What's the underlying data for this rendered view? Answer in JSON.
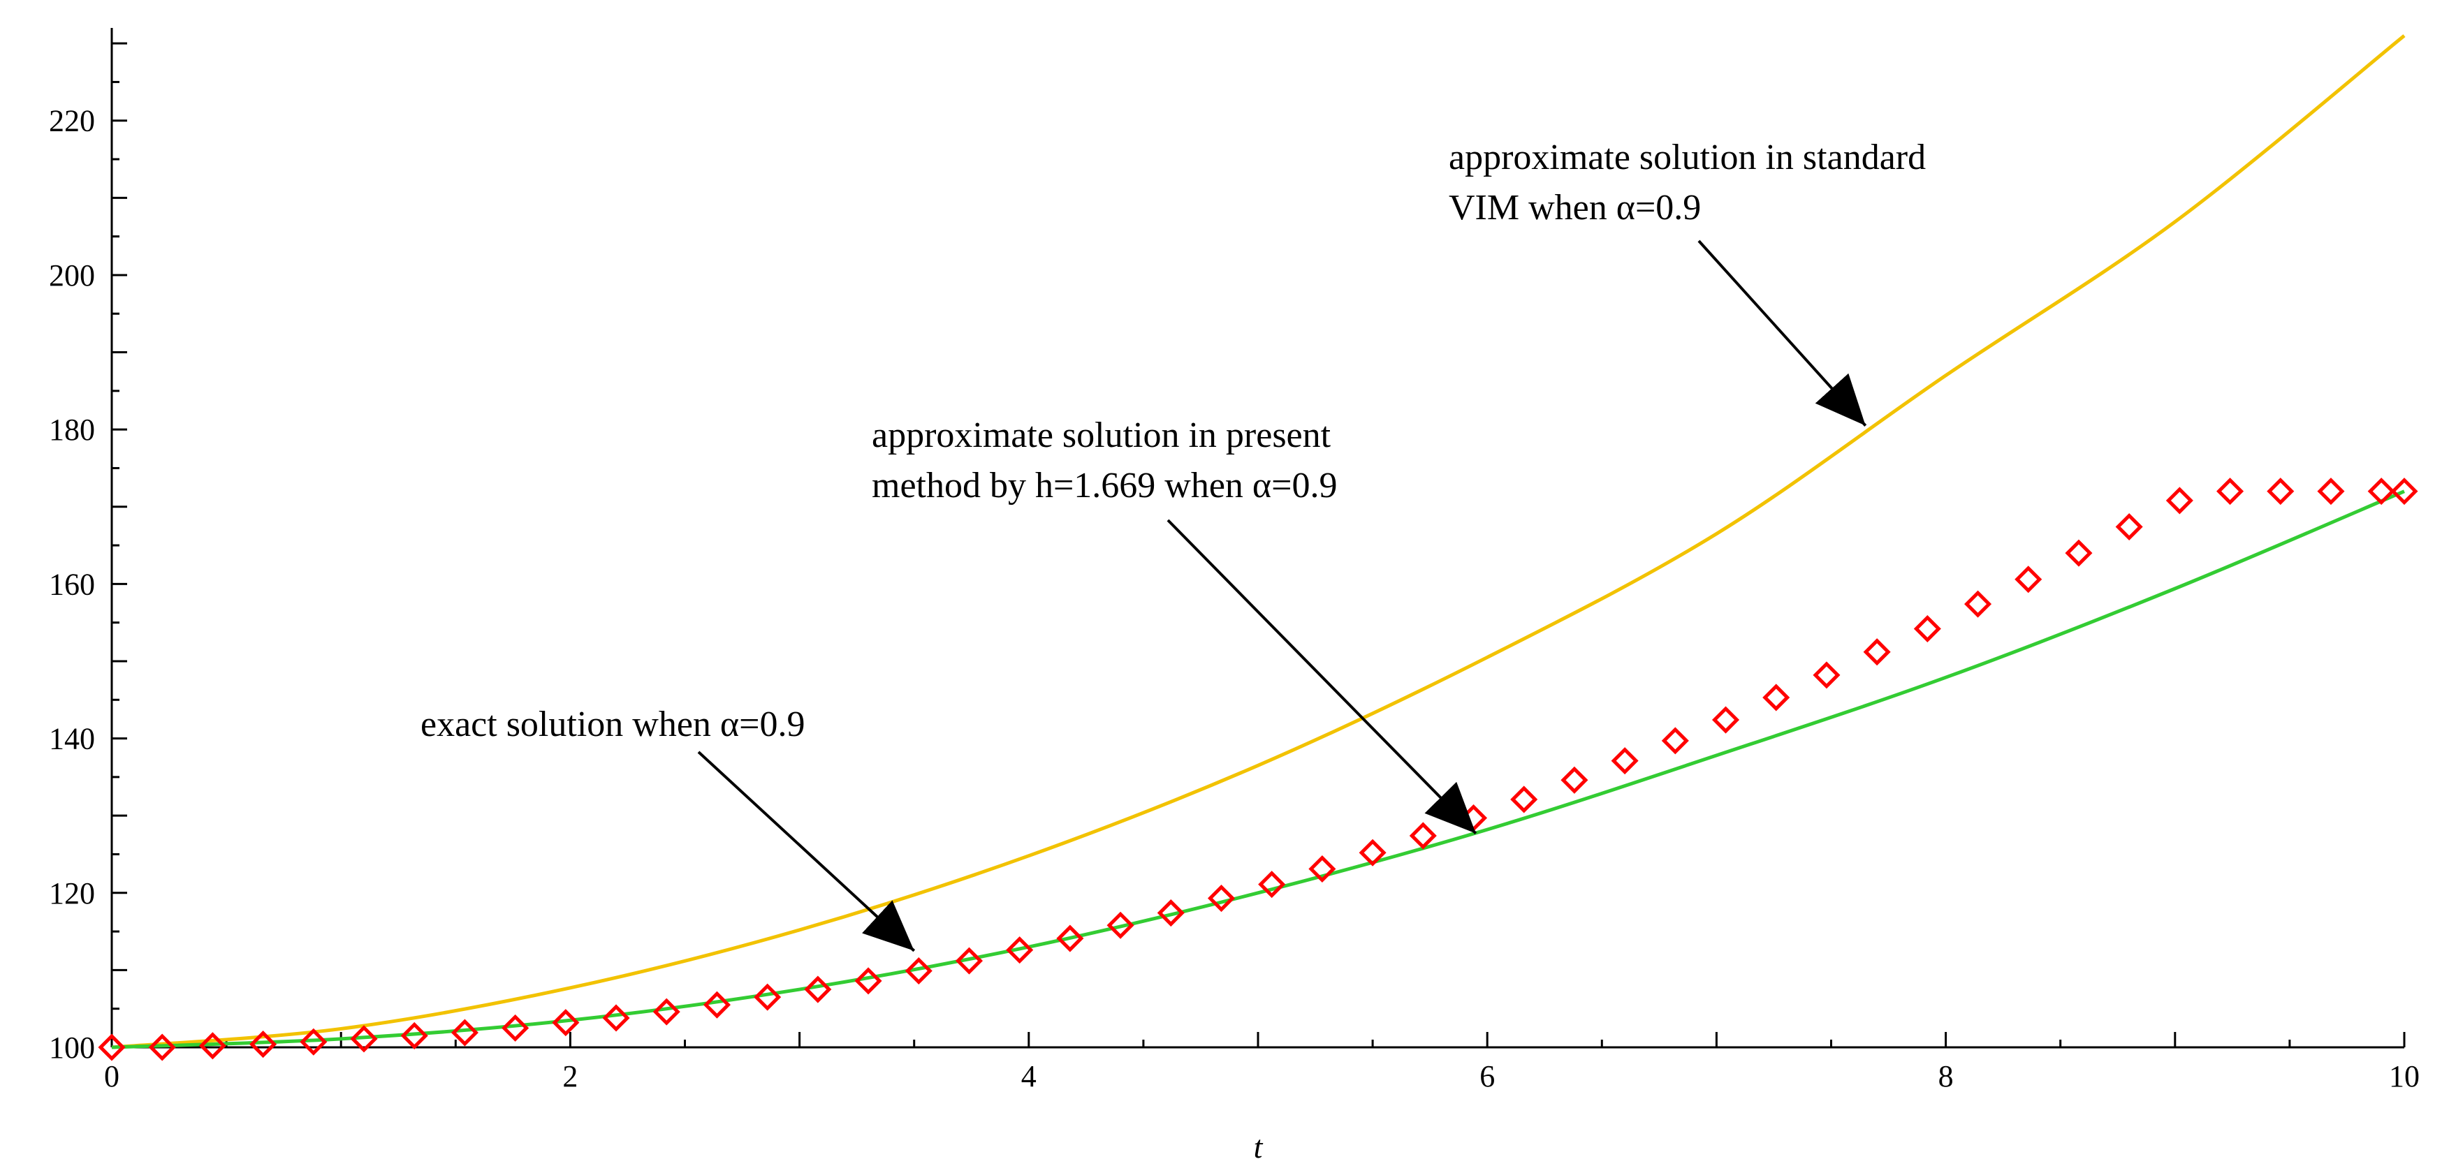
{
  "chart_data": {
    "type": "line",
    "title": "",
    "xlabel": "t",
    "ylabel": "",
    "xlim": [
      0,
      10
    ],
    "ylim": [
      100,
      232
    ],
    "x_ticks": [
      0,
      2,
      4,
      6,
      8,
      10
    ],
    "x_tick_labels": [
      "0",
      "2",
      "4",
      "6",
      "8",
      "10"
    ],
    "y_ticks": [
      100,
      120,
      140,
      160,
      180,
      200,
      220
    ],
    "y_tick_labels": [
      "100",
      "120",
      "140",
      "160",
      "180",
      "200",
      "220"
    ],
    "grid": false,
    "series": [
      {
        "name": "approximate solution in standard VIM when α=0.9",
        "style": "line",
        "color": "#f2c200",
        "x": [
          0,
          1,
          2,
          3,
          4,
          5,
          6,
          7,
          8,
          9,
          10
        ],
        "y": [
          100,
          102.4,
          107.7,
          115.2,
          124.8,
          136.5,
          150.5,
          166.5,
          187.0,
          206.9,
          231.0
        ]
      },
      {
        "name": "exact solution when α=0.9",
        "style": "line",
        "color": "#33cc33",
        "x": [
          0,
          1,
          2,
          3,
          4,
          5,
          6,
          7,
          8,
          9,
          10
        ],
        "y": [
          100,
          101.1,
          103.5,
          107.5,
          113.0,
          120.0,
          128.2,
          137.8,
          147.9,
          159.4,
          172.0
        ]
      },
      {
        "name": "approximate solution in present method by h=1.669 when α=0.9",
        "style": "markers",
        "marker": "diamond",
        "color": "#ff0000",
        "x": [
          0,
          0.22,
          0.44,
          0.66,
          0.88,
          1.1,
          1.32,
          1.54,
          1.76,
          1.98,
          2.2,
          2.42,
          2.64,
          2.86,
          3.08,
          3.3,
          3.52,
          3.74,
          3.96,
          4.18,
          4.4,
          4.62,
          4.84,
          5.06,
          5.28,
          5.5,
          5.72,
          5.94,
          6.16,
          6.38,
          6.6,
          6.82,
          7.04,
          7.26,
          7.48,
          7.7,
          7.92,
          8.14,
          8.36,
          8.58,
          8.8,
          9.02,
          9.24,
          9.46,
          9.68,
          9.9,
          10.0
        ],
        "y": [
          100,
          100.0,
          100.2,
          100.4,
          100.7,
          101.1,
          101.5,
          101.9,
          102.5,
          103.2,
          103.8,
          104.6,
          105.5,
          106.5,
          107.5,
          108.6,
          109.9,
          111.2,
          112.6,
          114.1,
          115.8,
          117.4,
          119.3,
          121.1,
          123.1,
          125.2,
          127.4,
          129.7,
          132.1,
          134.6,
          137.1,
          139.7,
          142.4,
          145.3,
          148.2,
          151.2,
          154.2,
          157.4,
          160.6,
          164.0,
          167.4,
          170.8,
          172.0,
          172.0,
          172.0,
          172.0,
          172.0
        ]
      }
    ],
    "annotations": [
      {
        "lines": [
          "approximate solution in standard",
          "VIM when α=0.9"
        ],
        "target_series": "approximate solution in standard VIM when α=0.9",
        "target": [
          7.65,
          180.5
        ]
      },
      {
        "lines": [
          "approximate solution in present",
          "method by h=1.669 when α=0.9"
        ],
        "target_series": "approximate solution in present method by h=1.669 when α=0.9",
        "target": [
          5.95,
          127.7
        ]
      },
      {
        "lines": [
          "exact solution when α=0.9"
        ],
        "target_series": "exact solution when α=0.9",
        "target": [
          3.5,
          112.5
        ]
      }
    ]
  }
}
